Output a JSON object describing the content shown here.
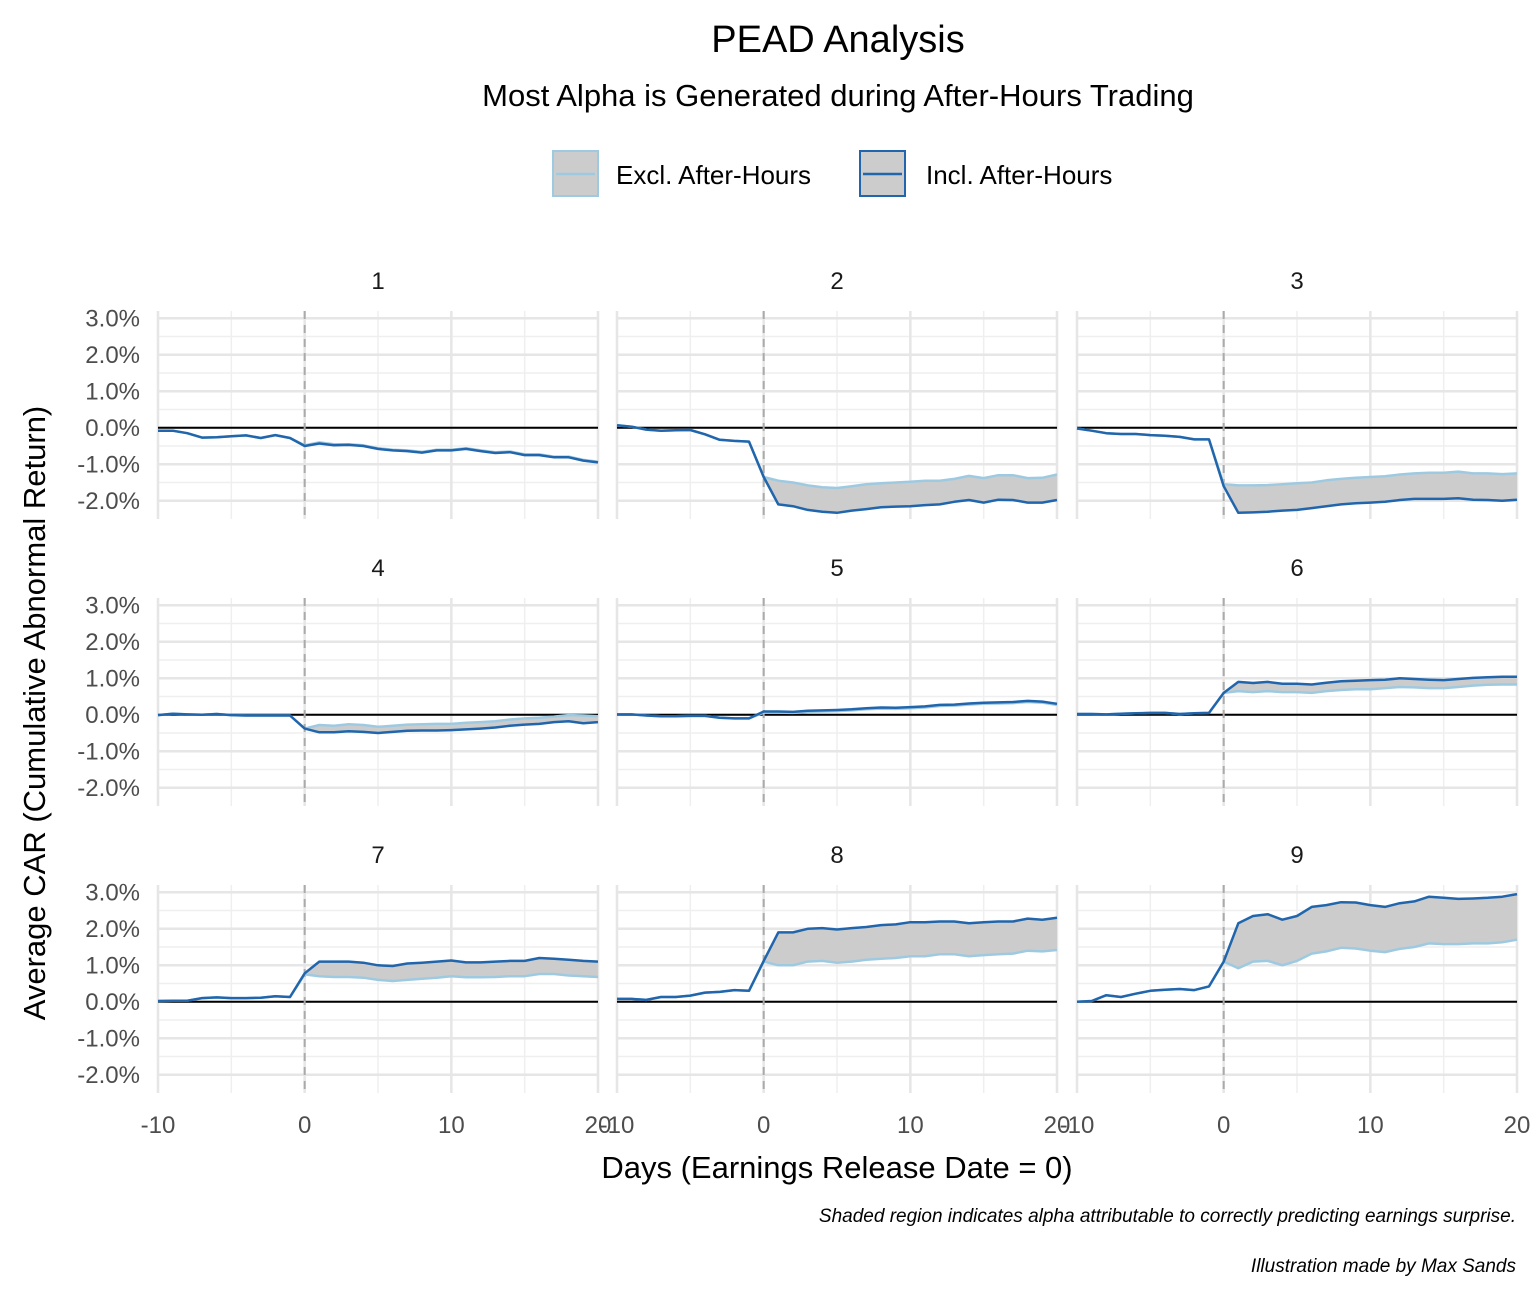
{
  "chart_data": {
    "type": "line",
    "title": "PEAD Analysis",
    "subtitle": "Most Alpha is Generated during After-Hours Trading",
    "xlabel": "Days (Earnings Release Date = 0)",
    "ylabel": "Average CAR (Cumulative Abnormal Return)",
    "caption_1": "Shaded region indicates alpha attributable to correctly predicting earnings surprise.",
    "caption_2": "Illustration made by Max Sands",
    "legend_position": "top",
    "legend": [
      {
        "name": "Excl. After-Hours",
        "color": "#9ecae1"
      },
      {
        "name": "Incl. After-Hours",
        "color": "#2166ac"
      }
    ],
    "ribbon_color": "#cccccc",
    "xlim": [
      -10,
      20
    ],
    "ylim": [
      -2.5,
      3.2
    ],
    "x_ticks": [
      -10,
      0,
      10,
      20
    ],
    "x_tick_labels": [
      "-10",
      "0",
      "10",
      "20"
    ],
    "y_ticks": [
      -2,
      -1,
      0,
      1,
      2,
      3
    ],
    "y_tick_labels": [
      "-2.0%",
      "-1.0%",
      "0.0%",
      "1.0%",
      "2.0%",
      "3.0%"
    ],
    "vertical_reference_x": 0,
    "horizontal_reference_y": 0,
    "grid": true,
    "x": [
      -10,
      -9,
      -8,
      -7,
      -6,
      -5,
      -4,
      -3,
      -2,
      -1,
      0,
      1,
      2,
      3,
      4,
      5,
      6,
      7,
      8,
      9,
      10,
      11,
      12,
      13,
      14,
      15,
      16,
      17,
      18,
      19,
      20
    ],
    "panels": [
      {
        "label": "1",
        "series": [
          {
            "name": "Excl. After-Hours",
            "values": [
              -0.08,
              -0.08,
              -0.15,
              -0.27,
              -0.26,
              -0.23,
              -0.21,
              -0.28,
              -0.2,
              -0.28,
              -0.48,
              -0.4,
              -0.45,
              -0.45,
              -0.48,
              -0.56,
              -0.6,
              -0.62,
              -0.66,
              -0.6,
              -0.6,
              -0.56,
              -0.62,
              -0.67,
              -0.65,
              -0.73,
              -0.73,
              -0.79,
              -0.79,
              -0.88,
              -0.93
            ]
          },
          {
            "name": "Incl. After-Hours",
            "values": [
              -0.08,
              -0.08,
              -0.15,
              -0.27,
              -0.26,
              -0.23,
              -0.21,
              -0.28,
              -0.2,
              -0.28,
              -0.5,
              -0.43,
              -0.48,
              -0.47,
              -0.5,
              -0.58,
              -0.62,
              -0.64,
              -0.68,
              -0.62,
              -0.62,
              -0.58,
              -0.64,
              -0.69,
              -0.67,
              -0.75,
              -0.75,
              -0.81,
              -0.81,
              -0.9,
              -0.95
            ]
          }
        ]
      },
      {
        "label": "2",
        "series": [
          {
            "name": "Excl. After-Hours",
            "values": [
              0.07,
              0.03,
              -0.05,
              -0.08,
              -0.07,
              -0.06,
              -0.18,
              -0.33,
              -0.36,
              -0.38,
              -1.35,
              -1.45,
              -1.5,
              -1.58,
              -1.63,
              -1.65,
              -1.6,
              -1.55,
              -1.52,
              -1.5,
              -1.48,
              -1.45,
              -1.45,
              -1.4,
              -1.32,
              -1.38,
              -1.3,
              -1.3,
              -1.38,
              -1.37,
              -1.28
            ]
          },
          {
            "name": "Incl. After-Hours",
            "values": [
              0.07,
              0.03,
              -0.05,
              -0.08,
              -0.07,
              -0.06,
              -0.18,
              -0.33,
              -0.36,
              -0.38,
              -1.35,
              -2.1,
              -2.15,
              -2.25,
              -2.3,
              -2.33,
              -2.27,
              -2.23,
              -2.18,
              -2.16,
              -2.15,
              -2.12,
              -2.1,
              -2.03,
              -1.98,
              -2.05,
              -1.97,
              -1.98,
              -2.05,
              -2.05,
              -1.98
            ]
          }
        ]
      },
      {
        "label": "3",
        "series": [
          {
            "name": "Excl. After-Hours",
            "values": [
              -0.02,
              -0.08,
              -0.15,
              -0.17,
              -0.17,
              -0.2,
              -0.22,
              -0.25,
              -0.32,
              -0.32,
              -1.55,
              -1.58,
              -1.58,
              -1.57,
              -1.55,
              -1.52,
              -1.5,
              -1.44,
              -1.4,
              -1.37,
              -1.35,
              -1.33,
              -1.28,
              -1.25,
              -1.23,
              -1.23,
              -1.2,
              -1.25,
              -1.25,
              -1.27,
              -1.25
            ]
          },
          {
            "name": "Incl. After-Hours",
            "values": [
              -0.02,
              -0.08,
              -0.15,
              -0.17,
              -0.17,
              -0.2,
              -0.22,
              -0.25,
              -0.32,
              -0.32,
              -1.6,
              -2.33,
              -2.32,
              -2.3,
              -2.27,
              -2.25,
              -2.2,
              -2.15,
              -2.1,
              -2.07,
              -2.05,
              -2.03,
              -1.98,
              -1.95,
              -1.95,
              -1.95,
              -1.93,
              -1.97,
              -1.98,
              -2.0,
              -1.97
            ]
          }
        ]
      },
      {
        "label": "4",
        "series": [
          {
            "name": "Excl. After-Hours",
            "values": [
              -0.01,
              0.03,
              0.01,
              0.0,
              0.02,
              -0.01,
              -0.02,
              -0.02,
              -0.02,
              -0.02,
              -0.38,
              -0.28,
              -0.3,
              -0.26,
              -0.28,
              -0.33,
              -0.3,
              -0.27,
              -0.26,
              -0.25,
              -0.25,
              -0.22,
              -0.2,
              -0.18,
              -0.13,
              -0.1,
              -0.08,
              -0.05,
              -0.01,
              -0.02,
              -0.04
            ]
          },
          {
            "name": "Incl. After-Hours",
            "values": [
              -0.01,
              0.03,
              0.01,
              0.0,
              0.02,
              -0.01,
              -0.02,
              -0.02,
              -0.02,
              -0.02,
              -0.38,
              -0.48,
              -0.48,
              -0.45,
              -0.47,
              -0.5,
              -0.47,
              -0.44,
              -0.43,
              -0.43,
              -0.42,
              -0.4,
              -0.38,
              -0.35,
              -0.3,
              -0.27,
              -0.25,
              -0.2,
              -0.18,
              -0.23,
              -0.2
            ]
          }
        ]
      },
      {
        "label": "5",
        "series": [
          {
            "name": "Excl. After-Hours",
            "values": [
              0.01,
              0.01,
              -0.02,
              -0.04,
              -0.04,
              -0.03,
              -0.03,
              -0.08,
              -0.1,
              -0.1,
              0.06,
              0.06,
              0.05,
              0.08,
              0.09,
              0.1,
              0.12,
              0.15,
              0.17,
              0.16,
              0.18,
              0.2,
              0.24,
              0.25,
              0.28,
              0.3,
              0.31,
              0.32,
              0.35,
              0.33,
              0.27
            ]
          },
          {
            "name": "Incl. After-Hours",
            "values": [
              0.01,
              0.01,
              -0.02,
              -0.04,
              -0.04,
              -0.03,
              -0.03,
              -0.08,
              -0.1,
              -0.1,
              0.09,
              0.09,
              0.08,
              0.11,
              0.12,
              0.13,
              0.15,
              0.18,
              0.2,
              0.19,
              0.21,
              0.23,
              0.27,
              0.28,
              0.31,
              0.33,
              0.34,
              0.35,
              0.38,
              0.36,
              0.3
            ]
          }
        ]
      },
      {
        "label": "6",
        "series": [
          {
            "name": "Excl. After-Hours",
            "values": [
              0.02,
              0.02,
              0.01,
              0.03,
              0.04,
              0.05,
              0.05,
              0.02,
              0.04,
              0.05,
              0.6,
              0.65,
              0.62,
              0.65,
              0.62,
              0.62,
              0.6,
              0.65,
              0.68,
              0.7,
              0.7,
              0.73,
              0.76,
              0.75,
              0.73,
              0.73,
              0.76,
              0.8,
              0.82,
              0.83,
              0.83
            ]
          },
          {
            "name": "Incl. After-Hours",
            "values": [
              0.02,
              0.02,
              0.01,
              0.03,
              0.04,
              0.05,
              0.05,
              0.02,
              0.04,
              0.05,
              0.6,
              0.9,
              0.87,
              0.9,
              0.85,
              0.85,
              0.83,
              0.88,
              0.92,
              0.93,
              0.95,
              0.96,
              1.0,
              0.98,
              0.96,
              0.95,
              0.98,
              1.01,
              1.03,
              1.04,
              1.04
            ]
          }
        ]
      },
      {
        "label": "7",
        "series": [
          {
            "name": "Excl. After-Hours",
            "values": [
              0.02,
              0.03,
              0.03,
              0.1,
              0.12,
              0.1,
              0.1,
              0.11,
              0.15,
              0.13,
              0.75,
              0.7,
              0.68,
              0.68,
              0.66,
              0.6,
              0.57,
              0.6,
              0.63,
              0.66,
              0.7,
              0.67,
              0.67,
              0.68,
              0.7,
              0.7,
              0.76,
              0.76,
              0.72,
              0.7,
              0.68
            ]
          },
          {
            "name": "Incl. After-Hours",
            "values": [
              0.02,
              0.03,
              0.03,
              0.1,
              0.12,
              0.1,
              0.1,
              0.11,
              0.15,
              0.13,
              0.78,
              1.1,
              1.1,
              1.1,
              1.07,
              1.0,
              0.98,
              1.05,
              1.07,
              1.1,
              1.13,
              1.08,
              1.08,
              1.1,
              1.12,
              1.12,
              1.2,
              1.18,
              1.15,
              1.12,
              1.1
            ]
          }
        ]
      },
      {
        "label": "8",
        "series": [
          {
            "name": "Excl. After-Hours",
            "values": [
              0.08,
              0.08,
              0.05,
              0.13,
              0.13,
              0.17,
              0.25,
              0.27,
              0.32,
              0.3,
              1.1,
              1.0,
              1.0,
              1.1,
              1.12,
              1.07,
              1.1,
              1.15,
              1.18,
              1.2,
              1.25,
              1.25,
              1.3,
              1.3,
              1.25,
              1.28,
              1.3,
              1.32,
              1.4,
              1.38,
              1.42
            ]
          },
          {
            "name": "Incl. After-Hours",
            "values": [
              0.08,
              0.08,
              0.05,
              0.13,
              0.13,
              0.17,
              0.25,
              0.27,
              0.32,
              0.3,
              1.12,
              1.9,
              1.9,
              2.0,
              2.02,
              1.98,
              2.02,
              2.05,
              2.1,
              2.12,
              2.18,
              2.18,
              2.2,
              2.2,
              2.15,
              2.18,
              2.2,
              2.2,
              2.28,
              2.25,
              2.3
            ]
          }
        ]
      },
      {
        "label": "9",
        "series": [
          {
            "name": "Excl. After-Hours",
            "values": [
              0.0,
              0.02,
              0.18,
              0.13,
              0.22,
              0.3,
              0.33,
              0.35,
              0.32,
              0.42,
              1.1,
              0.92,
              1.1,
              1.12,
              1.0,
              1.12,
              1.32,
              1.38,
              1.48,
              1.46,
              1.4,
              1.36,
              1.45,
              1.5,
              1.6,
              1.58,
              1.58,
              1.6,
              1.6,
              1.63,
              1.7
            ]
          },
          {
            "name": "Incl. After-Hours",
            "values": [
              0.0,
              0.02,
              0.18,
              0.13,
              0.22,
              0.3,
              0.33,
              0.35,
              0.32,
              0.42,
              1.1,
              2.15,
              2.35,
              2.4,
              2.25,
              2.35,
              2.6,
              2.65,
              2.73,
              2.72,
              2.65,
              2.6,
              2.7,
              2.75,
              2.88,
              2.85,
              2.82,
              2.83,
              2.85,
              2.88,
              2.95
            ]
          }
        ]
      }
    ]
  }
}
